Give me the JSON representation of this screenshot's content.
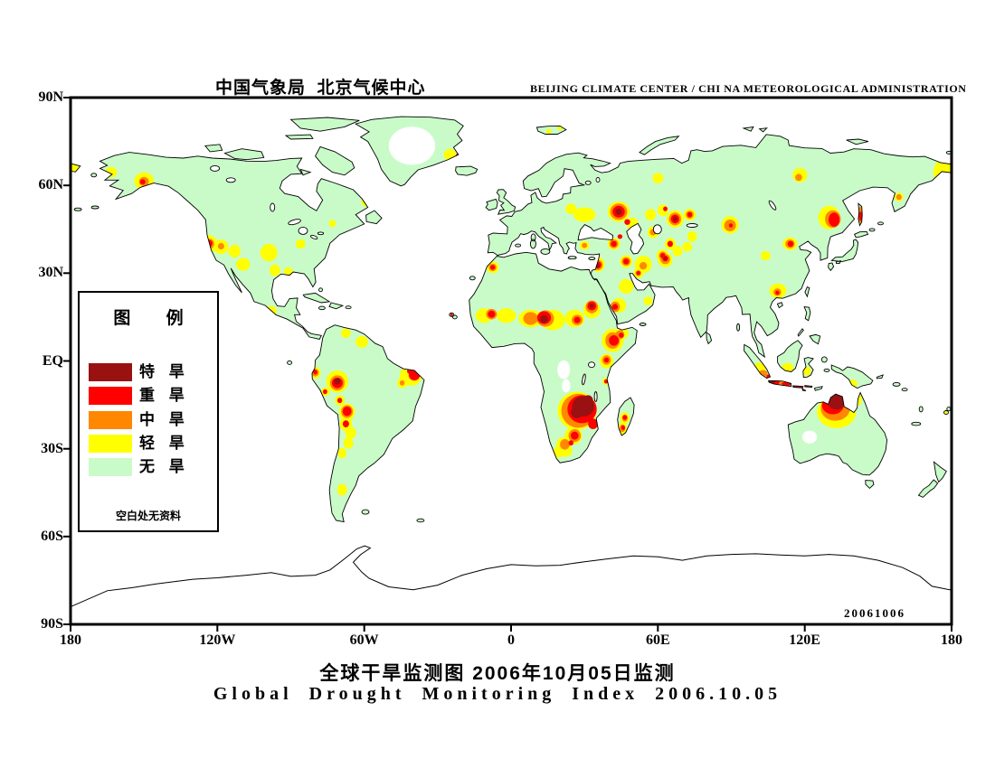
{
  "header": {
    "left": "中国气象局  北京气候中心",
    "right": "BEIJING CLIMATE CENTER / CHI NA METEOROLOGICAL ADMINISTRATION"
  },
  "titles": {
    "zh": "全球干旱监测图  2006年10月05日监测",
    "en": "Global Drought Monitoring Index  2006.10.05"
  },
  "map": {
    "date_stamp": "20061006"
  },
  "axes": {
    "lat_labels": [
      "90N",
      "60N",
      "30N",
      "EQ",
      "30S",
      "60S",
      "90S"
    ],
    "lon_labels": [
      "180",
      "120W",
      "60W",
      "0",
      "60E",
      "120E",
      "180"
    ]
  },
  "legend": {
    "title": "图 例",
    "note": "空白处无资料",
    "items": [
      {
        "label": "特 旱",
        "color": "#991111"
      },
      {
        "label": "重 旱",
        "color": "#FF0000"
      },
      {
        "label": "中 旱",
        "color": "#FF8800"
      },
      {
        "label": "轻 旱",
        "color": "#FFFF00"
      },
      {
        "label": "无 旱",
        "color": "#C9FBC9"
      }
    ]
  },
  "colors": {
    "land_no_drought": "#C9FBC9",
    "light": "#FFFF00",
    "moderate": "#FF8800",
    "severe": "#FF0000",
    "extreme": "#991111",
    "no_data": "#FFFFFF",
    "ocean": "#FFFFFF",
    "coastline": "#000000"
  },
  "chart_data": {
    "type": "map",
    "projection": "equirectangular",
    "extent": {
      "lon": [
        -180,
        180
      ],
      "lat": [
        -90,
        90
      ]
    },
    "severity_scale": {
      "0": "no data (blank)",
      "1": "轻旱 light",
      "2": "中旱 moderate",
      "3": "重旱 severe",
      "4": "特旱 extreme"
    },
    "drought_blobs": [
      [
        -40.5,
        73.5,
        9.5,
        6.5,
        0
      ],
      [
        21.5,
        -3,
        2.6,
        3.2,
        0
      ],
      [
        22.5,
        -8.5,
        1.7,
        2.3,
        0
      ],
      [
        24,
        -12.5,
        1.2,
        1.4,
        0
      ],
      [
        122,
        -26,
        3,
        2.2,
        0
      ],
      [
        -150,
        61.5,
        4,
        3,
        1
      ],
      [
        -163.5,
        64.5,
        2.5,
        1.8,
        1
      ],
      [
        -179,
        66,
        2.5,
        1.8,
        1
      ],
      [
        -123.5,
        40,
        3.5,
        3,
        1
      ],
      [
        -118.5,
        39,
        3,
        2.5,
        1
      ],
      [
        -113,
        37.5,
        2.5,
        2.2,
        1
      ],
      [
        -109.5,
        33,
        2.8,
        2.2,
        1
      ],
      [
        -99,
        37,
        3.5,
        3,
        1
      ],
      [
        -96.5,
        31,
        2.2,
        2,
        1
      ],
      [
        -91,
        30.5,
        1.8,
        1.5,
        1
      ],
      [
        -86,
        40,
        2,
        1.6,
        1
      ],
      [
        -59,
        54.5,
        2.2,
        1.8,
        1
      ],
      [
        -73,
        47,
        1.5,
        1.2,
        1
      ],
      [
        -98,
        17,
        2.2,
        1.8,
        1
      ],
      [
        -25,
        70.5,
        2.5,
        2,
        1
      ],
      [
        -61,
        6.5,
        2.5,
        2,
        1
      ],
      [
        -67.5,
        9.5,
        2,
        1.6,
        1
      ],
      [
        -80,
        -4,
        2.2,
        2,
        1
      ],
      [
        -71,
        -7,
        4.5,
        3.8,
        1
      ],
      [
        -75.8,
        -10.5,
        1.8,
        1.5,
        1
      ],
      [
        -70,
        -13.5,
        2,
        1.8,
        1
      ],
      [
        -67,
        -17.5,
        3.2,
        3,
        1
      ],
      [
        -67.5,
        -21.5,
        2.5,
        2.5,
        1
      ],
      [
        -65.5,
        -24.5,
        2.2,
        2,
        1
      ],
      [
        -66.5,
        -28,
        2,
        2,
        1
      ],
      [
        -69,
        -31.5,
        1.8,
        1.8,
        1
      ],
      [
        -69,
        -44,
        2,
        2,
        1
      ],
      [
        -41,
        -5,
        4.5,
        3.5,
        1
      ],
      [
        -44.5,
        -7.5,
        2,
        1.8,
        1
      ],
      [
        -11,
        15.5,
        3.5,
        2.5,
        1
      ],
      [
        -2,
        15.5,
        4,
        2.5,
        1
      ],
      [
        8,
        14.5,
        5,
        3,
        1
      ],
      [
        17,
        14,
        5,
        3.5,
        1
      ],
      [
        26,
        14.5,
        4,
        3,
        1
      ],
      [
        33,
        17.5,
        3.5,
        3,
        1
      ],
      [
        -7.5,
        32,
        2.5,
        2,
        1
      ],
      [
        41.5,
        7,
        4.5,
        4,
        1
      ],
      [
        39,
        0,
        2.8,
        2.5,
        1
      ],
      [
        45.5,
        9.5,
        2.5,
        2,
        1
      ],
      [
        44,
        19,
        3,
        2.5,
        1
      ],
      [
        47,
        25.5,
        3,
        2.5,
        1
      ],
      [
        56,
        20.5,
        1.8,
        1.5,
        1
      ],
      [
        27,
        -17,
        8,
        6.5,
        1
      ],
      [
        25.5,
        -25.5,
        3.5,
        3,
        1
      ],
      [
        21.5,
        -28.5,
        3,
        2.5,
        1
      ],
      [
        19.5,
        -31,
        2.2,
        2,
        1
      ],
      [
        22,
        -30.5,
        3,
        2.3,
        1
      ],
      [
        46.5,
        -19.5,
        2,
        2,
        1
      ],
      [
        45.5,
        -23,
        1.8,
        2,
        1
      ],
      [
        38.8,
        -7,
        1.5,
        1.3,
        1
      ],
      [
        30,
        50,
        4.5,
        2.5,
        1
      ],
      [
        24.5,
        52,
        2.2,
        1.8,
        1
      ],
      [
        44,
        51,
        4.5,
        3.5,
        1
      ],
      [
        49.5,
        47,
        2.5,
        2,
        1
      ],
      [
        42,
        40,
        2.5,
        2,
        1
      ],
      [
        30,
        39.5,
        2,
        1.5,
        1
      ],
      [
        35.5,
        33,
        2.8,
        2.5,
        1
      ],
      [
        15.5,
        78.5,
        1.2,
        0.8,
        1
      ],
      [
        20,
        79.5,
        1,
        0.7,
        1
      ],
      [
        60,
        62.5,
        2.2,
        1.8,
        1
      ],
      [
        118,
        63.5,
        3,
        2.5,
        1
      ],
      [
        89.5,
        46.5,
        3.5,
        3,
        1
      ],
      [
        74,
        42.5,
        2,
        1.8,
        1
      ],
      [
        67,
        48.5,
        3.5,
        3,
        1
      ],
      [
        73,
        50,
        2.5,
        2,
        1
      ],
      [
        62,
        51.5,
        2.2,
        2,
        1
      ],
      [
        57,
        50,
        2.2,
        2,
        1
      ],
      [
        65,
        40,
        2.2,
        2,
        1
      ],
      [
        58,
        44,
        2.2,
        2,
        1
      ],
      [
        62,
        36,
        2.5,
        2.2,
        1
      ],
      [
        54,
        33,
        3.5,
        3,
        1
      ],
      [
        47,
        34,
        2.5,
        2.2,
        1
      ],
      [
        52,
        30,
        2,
        1.8,
        1
      ],
      [
        63,
        34.5,
        3,
        2.5,
        1
      ],
      [
        68,
        37.5,
        2,
        1.8,
        1
      ],
      [
        72,
        39,
        2,
        1.6,
        1
      ],
      [
        130,
        49,
        4.5,
        4,
        1
      ],
      [
        114,
        40,
        3,
        2.2,
        1
      ],
      [
        109,
        24,
        3.5,
        2.5,
        1
      ],
      [
        104,
        36,
        2,
        1.6,
        1
      ],
      [
        177.5,
        64.5,
        5,
        4.5,
        1
      ],
      [
        158.5,
        56,
        1.8,
        1.5,
        1
      ],
      [
        101.5,
        -2.5,
        2.5,
        2,
        1
      ],
      [
        113,
        -2.5,
        2.5,
        1.8,
        1
      ],
      [
        121,
        -3.5,
        1.5,
        1.5,
        1
      ],
      [
        139.5,
        -7.8,
        2,
        1.5,
        1
      ],
      [
        109,
        -7.5,
        4,
        1.5,
        1
      ],
      [
        133,
        -17.5,
        8,
        5.5,
        1
      ],
      [
        141.8,
        -13,
        1.5,
        2.2,
        1
      ],
      [
        177.5,
        -17.5,
        0.8,
        0.7,
        1
      ],
      [
        -150,
        61.3,
        2,
        1.6,
        2
      ],
      [
        -123.3,
        40,
        2,
        1.8,
        2
      ],
      [
        -118.5,
        39.2,
        1.3,
        1.1,
        2
      ],
      [
        -80,
        -4,
        1.4,
        1.3,
        2
      ],
      [
        -71,
        -7.5,
        3,
        2.6,
        2
      ],
      [
        -67,
        -17.3,
        2.4,
        2.2,
        2
      ],
      [
        -44.5,
        -7.5,
        1,
        0.9,
        2
      ],
      [
        -39.5,
        -4.8,
        2.4,
        2,
        2
      ],
      [
        -7.5,
        32,
        1.6,
        1.3,
        2
      ],
      [
        -8,
        16,
        2.2,
        1.8,
        2
      ],
      [
        8,
        14.5,
        3,
        2.2,
        2
      ],
      [
        14,
        14.5,
        3.5,
        2.8,
        2
      ],
      [
        27,
        14,
        2.2,
        1.8,
        2
      ],
      [
        33,
        18.5,
        2.5,
        2.2,
        2
      ],
      [
        41.5,
        7,
        3,
        2.8,
        2
      ],
      [
        44.5,
        9,
        1.8,
        1.5,
        2
      ],
      [
        39,
        0.3,
        1.8,
        1.6,
        2
      ],
      [
        42.5,
        18.5,
        2,
        1.8,
        2
      ],
      [
        27.5,
        -17,
        7,
        5.8,
        2
      ],
      [
        26,
        -25.5,
        2.5,
        2.2,
        2
      ],
      [
        22,
        -28.5,
        2,
        1.8,
        2
      ],
      [
        46.5,
        -19.5,
        1.2,
        1.2,
        2
      ],
      [
        45.5,
        -23,
        1.2,
        1.3,
        2
      ],
      [
        44,
        51,
        3.5,
        2.8,
        2
      ],
      [
        35.5,
        32.8,
        2,
        1.8,
        2
      ],
      [
        42,
        40,
        1.8,
        1.5,
        2
      ],
      [
        30,
        39.5,
        1.1,
        0.9,
        2
      ],
      [
        67,
        48.5,
        2.5,
        2.2,
        2
      ],
      [
        73,
        50,
        1.6,
        1.4,
        2
      ],
      [
        62,
        36,
        1.6,
        1.4,
        2
      ],
      [
        63,
        34.8,
        2,
        1.7,
        2
      ],
      [
        47,
        34,
        1.8,
        1.5,
        2
      ],
      [
        54,
        32.5,
        1.5,
        1.3,
        2
      ],
      [
        52,
        30,
        1.2,
        1,
        2
      ],
      [
        89.5,
        46.3,
        2.4,
        2,
        2
      ],
      [
        117.5,
        62.7,
        1.4,
        1.2,
        2
      ],
      [
        131.5,
        48.5,
        3.2,
        3,
        2
      ],
      [
        114,
        40,
        1.9,
        1.5,
        2
      ],
      [
        108.8,
        23.5,
        1.6,
        1.3,
        2
      ],
      [
        158.5,
        56,
        1.1,
        1,
        2
      ],
      [
        142.8,
        50,
        1,
        2.8,
        2
      ],
      [
        103,
        -4.3,
        1.8,
        1.2,
        2
      ],
      [
        108,
        -7.4,
        3,
        1,
        2
      ],
      [
        132.5,
        -16.2,
        6,
        4.2,
        2
      ],
      [
        65,
        40,
        1.2,
        1.1,
        2
      ],
      [
        58,
        44,
        1.3,
        1.1,
        2
      ],
      [
        -150.5,
        61.2,
        1.1,
        0.9,
        3
      ],
      [
        -123.2,
        40.2,
        1.2,
        1.1,
        3
      ],
      [
        -21.5,
        70,
        1.2,
        1,
        3
      ],
      [
        -80,
        -3.8,
        0.8,
        0.8,
        3
      ],
      [
        -71,
        -7.5,
        2.2,
        1.8,
        3
      ],
      [
        -76,
        -10.5,
        0.9,
        0.8,
        3
      ],
      [
        -70,
        -13.5,
        1,
        0.9,
        3
      ],
      [
        -67,
        -17.2,
        1.8,
        1.6,
        3
      ],
      [
        -67.5,
        -21.5,
        1.3,
        1.2,
        3
      ],
      [
        -39.5,
        -4.8,
        2.2,
        1.8,
        3
      ],
      [
        -41.5,
        -3.5,
        1,
        0.9,
        3
      ],
      [
        -7.5,
        32,
        1,
        0.8,
        3
      ],
      [
        -8,
        16,
        1.5,
        1.2,
        3
      ],
      [
        13.5,
        14.8,
        2.8,
        2.2,
        3
      ],
      [
        27,
        14,
        1.3,
        1.1,
        3
      ],
      [
        33,
        18.8,
        1.8,
        1.5,
        3
      ],
      [
        42,
        7,
        2,
        1.8,
        3
      ],
      [
        45,
        8.8,
        1,
        0.9,
        3
      ],
      [
        39,
        0.3,
        1,
        0.9,
        3
      ],
      [
        38.8,
        -7,
        0.8,
        0.7,
        3
      ],
      [
        42.5,
        18.5,
        1.2,
        1,
        3
      ],
      [
        29,
        -16.5,
        6,
        4.8,
        3
      ],
      [
        33.5,
        -21.5,
        2,
        1.8,
        3
      ],
      [
        26,
        -25.5,
        1.6,
        1.4,
        3
      ],
      [
        24.5,
        -28,
        1,
        0.9,
        3
      ],
      [
        46.5,
        -19.3,
        0.9,
        0.8,
        3
      ],
      [
        45.8,
        -22.8,
        0.8,
        0.8,
        3
      ],
      [
        44,
        51,
        2.5,
        2,
        3
      ],
      [
        47.5,
        47.5,
        1.2,
        1,
        3
      ],
      [
        42,
        40,
        1.2,
        1,
        3
      ],
      [
        35.5,
        32.8,
        1.4,
        1.2,
        3
      ],
      [
        44.5,
        42.5,
        1,
        0.8,
        3
      ],
      [
        67,
        48.5,
        1.7,
        1.5,
        3
      ],
      [
        73,
        50,
        1,
        0.9,
        3
      ],
      [
        63,
        52,
        0.9,
        0.8,
        3
      ],
      [
        65,
        40,
        1.1,
        1,
        3
      ],
      [
        62,
        36,
        1,
        0.9,
        3
      ],
      [
        63,
        35,
        1.2,
        1,
        3
      ],
      [
        47,
        34,
        1.2,
        1,
        3
      ],
      [
        52,
        30,
        0.8,
        0.7,
        3
      ],
      [
        89.8,
        46.3,
        0.8,
        0.7,
        3
      ],
      [
        132,
        48.3,
        2.2,
        2.4,
        3
      ],
      [
        114.2,
        40,
        1.2,
        1,
        3
      ],
      [
        108.8,
        23.3,
        0.8,
        0.7,
        3
      ],
      [
        142.8,
        49.5,
        0.7,
        1.6,
        3
      ],
      [
        105.5,
        -5.3,
        1.2,
        0.8,
        3
      ],
      [
        107.5,
        -7.3,
        2.2,
        0.9,
        3
      ],
      [
        112.5,
        -7.8,
        2,
        0.8,
        3
      ],
      [
        118,
        -8.8,
        3.5,
        0.8,
        3
      ],
      [
        131.5,
        -15,
        4.5,
        3.2,
        3
      ],
      [
        -24.3,
        15.8,
        0.5,
        0.5,
        3
      ],
      [
        -71,
        -7,
        1.3,
        1.1,
        4
      ],
      [
        13.5,
        14.3,
        1.6,
        1.3,
        4
      ],
      [
        29.5,
        -15.5,
        4.5,
        3.5,
        4
      ],
      [
        27,
        -17.5,
        2.5,
        2,
        4
      ],
      [
        31.5,
        -13.5,
        2,
        1.8,
        4
      ],
      [
        44,
        51,
        1.3,
        1.1,
        4
      ],
      [
        35.3,
        32.5,
        0.8,
        0.7,
        4
      ],
      [
        63,
        35,
        0.6,
        0.5,
        4
      ],
      [
        67,
        48.5,
        0.8,
        0.7,
        4
      ],
      [
        33,
        18.8,
        0.8,
        0.7,
        4
      ],
      [
        106.5,
        -7.2,
        1.5,
        0.7,
        4
      ],
      [
        133,
        -14,
        3.5,
        2.6,
        4
      ],
      [
        134.5,
        -13,
        1.5,
        1.2,
        4
      ]
    ]
  }
}
